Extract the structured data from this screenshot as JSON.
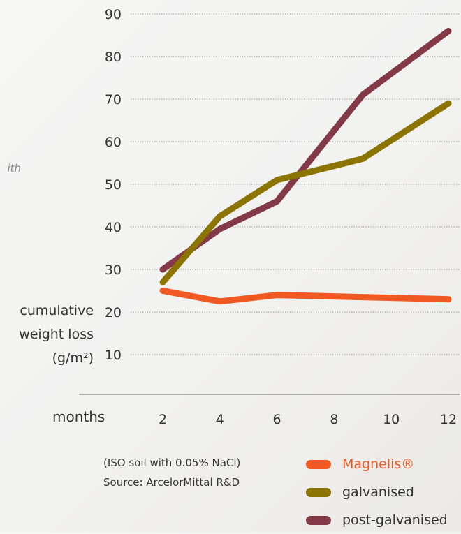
{
  "page": {
    "partial_text": "ith"
  },
  "chart_data": {
    "type": "line",
    "xlabel": "months",
    "ylabel_lines": [
      "cumulative",
      "weight loss",
      "(g/m²)"
    ],
    "x_ticks": [
      2,
      4,
      6,
      8,
      10,
      12
    ],
    "y_ticks": [
      10,
      20,
      30,
      40,
      50,
      60,
      70,
      80,
      90
    ],
    "xlim": [
      2,
      12
    ],
    "ylim": [
      10,
      90
    ],
    "grid": "horizontal dotted",
    "legend_placement": "bottom-right",
    "series": [
      {
        "name": "Magnelis®",
        "color": "#f05a22",
        "x": [
          2,
          4,
          6,
          9,
          12
        ],
        "y": [
          25,
          22.5,
          24,
          23.5,
          23
        ]
      },
      {
        "name": "galvanised",
        "color": "#8b7400",
        "x": [
          2,
          4,
          6,
          9,
          12
        ],
        "y": [
          27,
          42.5,
          51,
          56,
          69
        ]
      },
      {
        "name": "post-galvanised",
        "color": "#833a46",
        "x": [
          2,
          4,
          6,
          9,
          12
        ],
        "y": [
          30,
          39.5,
          46,
          71,
          86
        ]
      }
    ],
    "note_lines": [
      "(ISO soil with 0.05% NaCl)",
      "Source: ArcelorMittal R&D"
    ]
  }
}
